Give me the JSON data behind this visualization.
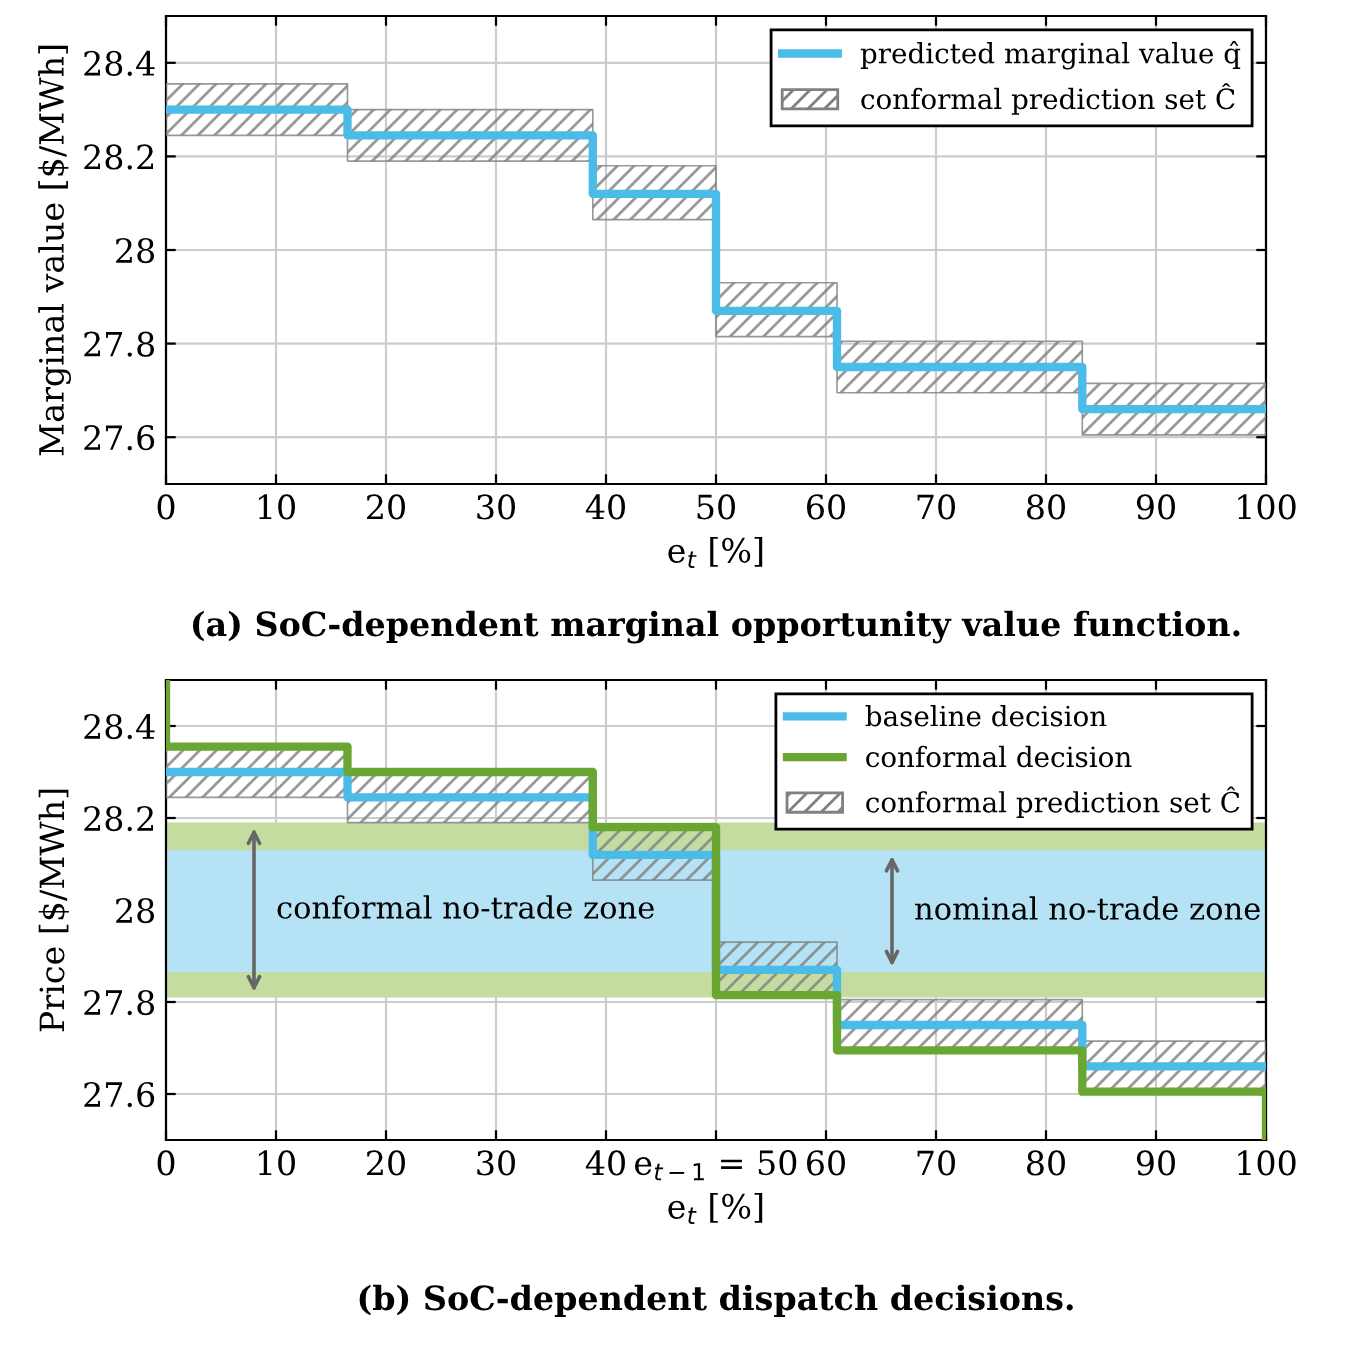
{
  "chart_data": [
    {
      "type": "step",
      "title": "(a) SoC-dependent marginal opportunity value function.",
      "xlabel": "e$_{t}$ [%]",
      "ylabel": "Marginal value [$/MWh]",
      "xlim": [
        0,
        100
      ],
      "ylim": [
        27.5,
        28.5
      ],
      "xticks": [
        0,
        10,
        20,
        30,
        40,
        50,
        60,
        70,
        80,
        90,
        100
      ],
      "yticks": [
        27.6,
        27.8,
        28,
        28.2,
        28.4
      ],
      "grid": true,
      "legend": "top right",
      "annotations": [
        "conformal prediction set Ĉ"
      ],
      "series": [
        {
          "name": "predicted marginal value q̂",
          "color": "#4bbbe8",
          "x": [
            0,
            16.5,
            38.8,
            50,
            61,
            83.3,
            100
          ],
          "values": [
            28.3,
            28.245,
            28.12,
            27.87,
            27.75,
            27.66,
            27.66
          ],
          "lower": [
            28.245,
            28.19,
            28.065,
            27.815,
            27.695,
            27.605,
            27.605
          ],
          "upper": [
            28.355,
            28.3,
            28.18,
            27.93,
            27.805,
            27.715,
            27.715
          ]
        }
      ]
    },
    {
      "type": "step",
      "title": "(b) SoC-dependent dispatch decisions.",
      "xlabel": "e$_{t}$ [%]",
      "ylabel": "Price [$/MWh]",
      "xlim": [
        0,
        100
      ],
      "ylim": [
        27.5,
        28.5
      ],
      "xticks": [
        0,
        10,
        20,
        30,
        40,
        {
          "value": 50,
          "label": "e$_{t−1}$ = 50"
        },
        60,
        70,
        80,
        90,
        100
      ],
      "yticks": [
        27.6,
        27.8,
        28,
        28.2,
        28.4
      ],
      "grid": true,
      "legend": "top right",
      "annotations": [
        "conformal prediction set Ĉ"
      ],
      "bands": [
        {
          "axis": "y",
          "from": 27.81,
          "to": 28.19,
          "label": "conformal no-trade zone",
          "color": "#c5dca0"
        },
        {
          "axis": "y",
          "from": 27.865,
          "to": 28.13,
          "label": "nominal no-trade zone",
          "color": "#b5e2f5"
        }
      ],
      "series": [
        {
          "name": "baseline decision",
          "color": "#4bbbe8",
          "x": [
            0,
            16.5,
            38.8,
            50,
            61,
            83.3,
            100
          ],
          "values": [
            28.3,
            28.245,
            28.12,
            27.87,
            27.75,
            27.66,
            27.66
          ],
          "lower": [
            28.245,
            28.19,
            28.065,
            27.815,
            27.695,
            27.605,
            27.605
          ],
          "upper": [
            28.355,
            28.3,
            28.18,
            27.93,
            27.805,
            27.715,
            27.715
          ]
        },
        {
          "name": "conformal decision",
          "color": "#6aa632",
          "x": [
            0,
            0,
            16.5,
            38.8,
            50,
            61,
            83.3,
            100,
            100
          ],
          "values": [
            28.5,
            28.355,
            28.3,
            28.18,
            27.815,
            27.695,
            27.605,
            27.605,
            27.5
          ]
        }
      ]
    }
  ]
}
